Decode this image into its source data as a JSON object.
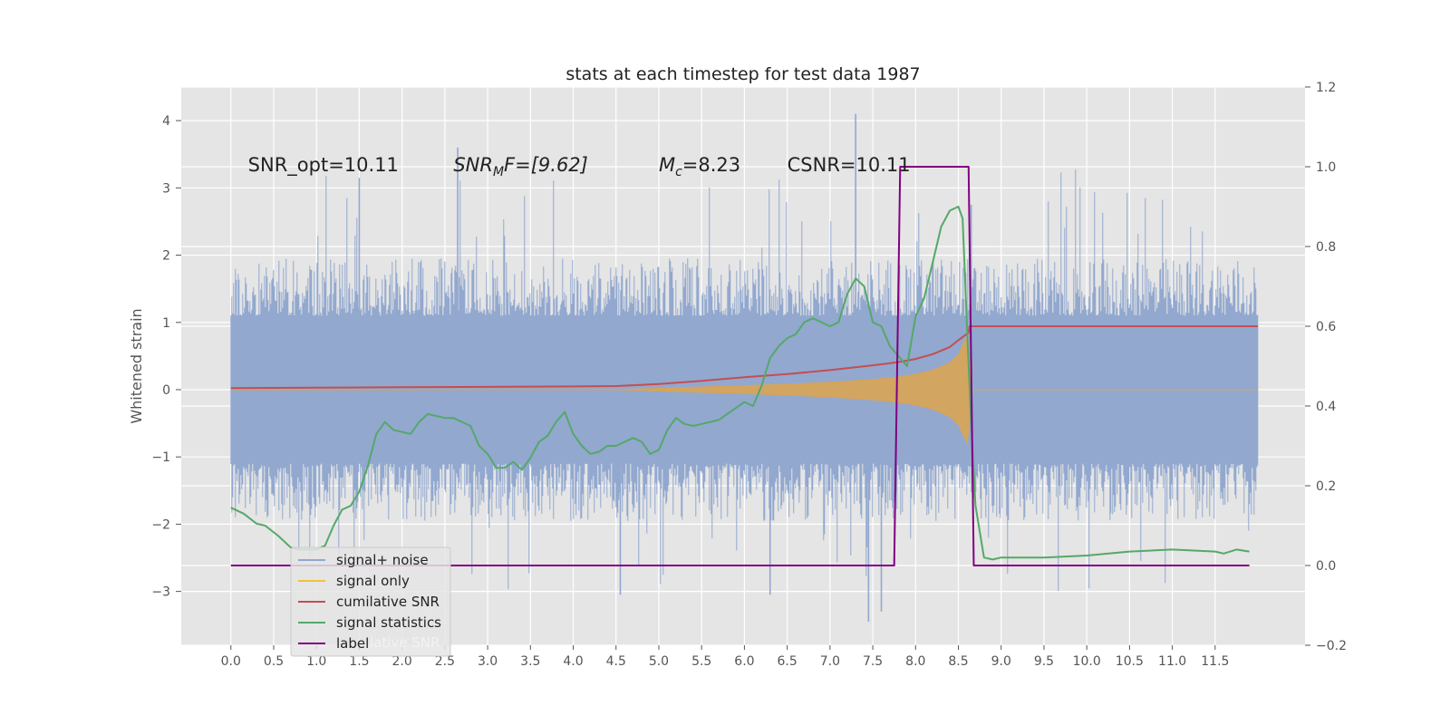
{
  "chart_data": {
    "type": "line",
    "title": "stats at each timestep for test data 1987",
    "ylabel": "Whitened strain",
    "y2label": "",
    "xlim": [
      -0.58,
      12.55
    ],
    "ylim": [
      -3.8,
      4.5
    ],
    "y2lim": [
      -0.2,
      1.2
    ],
    "grid": true,
    "legend_position": "lower-left",
    "x_ticks": [
      0.0,
      0.5,
      1.0,
      1.5,
      2.0,
      2.5,
      3.0,
      3.5,
      4.0,
      4.5,
      5.0,
      5.5,
      6.0,
      6.5,
      7.0,
      7.5,
      8.0,
      8.5,
      9.0,
      9.5,
      10.0,
      10.5,
      11.0,
      11.5
    ],
    "x_tick_labels": [
      "0.0",
      "0.5",
      "1.0",
      "1.5",
      "2.0",
      "2.5",
      "3.0",
      "3.5",
      "4.0",
      "4.5",
      "5.0",
      "5.5",
      "6.0",
      "6.5",
      "7.0",
      "7.5",
      "8.0",
      "8.5",
      "9.0",
      "9.5",
      "10.0",
      "10.5",
      "11.0",
      "11.5"
    ],
    "y_ticks": [
      4,
      3,
      2,
      1,
      0,
      -1,
      -2,
      -3
    ],
    "y_tick_labels": [
      "4",
      "3",
      "2",
      "1",
      "0",
      "−1",
      "−2",
      "−3"
    ],
    "y2_ticks": [
      1.2,
      1.0,
      0.8,
      0.6,
      0.4,
      0.2,
      0.0,
      -0.2
    ],
    "y2_tick_labels": [
      "1.2",
      "1.0",
      "0.8",
      "0.6",
      "0.4",
      "0.2",
      "0.0",
      "−0.2"
    ],
    "annotations": [
      {
        "id": "snr_opt",
        "text": "SNR_opt=10.11",
        "x": 0.2,
        "y": 3.25
      },
      {
        "id": "snr_mf",
        "main": "SNR",
        "sub": "M",
        "rest": "F=[9.62]",
        "x": 2.6,
        "y": 3.25
      },
      {
        "id": "mc",
        "main": "M",
        "sub": "c",
        "rest": "=8.23",
        "x": 5.0,
        "y": 3.25
      },
      {
        "id": "csnr",
        "text": "CSNR=10.11",
        "x": 6.5,
        "y": 3.25
      }
    ],
    "legend": [
      {
        "label": "signal+ noise",
        "color": "#92a8cf"
      },
      {
        "label": "signal only",
        "color": "#f2c13a"
      },
      {
        "label": "cumilative SNR",
        "color": "#c44e52"
      },
      {
        "label": "signal statistics",
        "color": "#55a868"
      },
      {
        "label": "label",
        "color": "#800080"
      }
    ],
    "legend_ghost_text": "lative SNR",
    "series": [
      {
        "name": "signal+ noise",
        "axis": "left",
        "style": "noise",
        "color": "#92a8cf",
        "x_start": 0.0,
        "x_end": 12.0,
        "envelope_max": 2.0,
        "envelope_min": -2.0,
        "peak_max": 4.1,
        "peak_min": -3.45
      },
      {
        "name": "signal only",
        "axis": "left",
        "style": "chirp",
        "color": "#d6a45a",
        "x": [
          0.0,
          4.5,
          5.0,
          5.5,
          6.0,
          6.5,
          7.0,
          7.5,
          7.8,
          8.0,
          8.2,
          8.4,
          8.5,
          8.6,
          8.62,
          8.64,
          8.65,
          12.0
        ],
        "amp": [
          0.0,
          0.0,
          0.02,
          0.04,
          0.06,
          0.08,
          0.11,
          0.15,
          0.19,
          0.23,
          0.29,
          0.4,
          0.52,
          0.8,
          0.6,
          0.25,
          0.0,
          0.0
        ]
      },
      {
        "name": "cumilative SNR",
        "axis": "right",
        "style": "line",
        "color": "#c44e52",
        "x": [
          0.0,
          1.0,
          2.0,
          3.0,
          4.0,
          4.5,
          5.0,
          5.5,
          6.0,
          6.5,
          7.0,
          7.5,
          7.8,
          8.0,
          8.2,
          8.4,
          8.5,
          8.62,
          8.63,
          12.0
        ],
        "y": [
          0.445,
          0.446,
          0.447,
          0.448,
          0.449,
          0.45,
          0.455,
          0.463,
          0.472,
          0.48,
          0.49,
          0.502,
          0.51,
          0.518,
          0.53,
          0.548,
          0.565,
          0.584,
          0.6,
          0.6
        ]
      },
      {
        "name": "signal statistics",
        "axis": "right",
        "style": "line",
        "color": "#55a868",
        "x": [
          0.0,
          0.15,
          0.3,
          0.4,
          0.55,
          0.7,
          0.8,
          0.9,
          1.0,
          1.1,
          1.2,
          1.3,
          1.4,
          1.5,
          1.6,
          1.7,
          1.8,
          1.9,
          2.0,
          2.1,
          2.2,
          2.3,
          2.4,
          2.5,
          2.6,
          2.7,
          2.8,
          2.9,
          3.0,
          3.1,
          3.2,
          3.3,
          3.4,
          3.5,
          3.6,
          3.7,
          3.8,
          3.9,
          4.0,
          4.1,
          4.2,
          4.3,
          4.4,
          4.5,
          4.6,
          4.7,
          4.8,
          4.9,
          5.0,
          5.1,
          5.2,
          5.3,
          5.4,
          5.5,
          5.6,
          5.7,
          5.8,
          5.9,
          6.0,
          6.1,
          6.2,
          6.3,
          6.4,
          6.5,
          6.6,
          6.7,
          6.8,
          6.9,
          7.0,
          7.1,
          7.2,
          7.3,
          7.4,
          7.5,
          7.6,
          7.7,
          7.8,
          7.9,
          8.0,
          8.1,
          8.2,
          8.3,
          8.4,
          8.5,
          8.55,
          8.6,
          8.65,
          8.7,
          8.8,
          8.9,
          9.0,
          9.5,
          10.0,
          10.5,
          11.0,
          11.5,
          11.6,
          11.75,
          11.9
        ],
        "y": [
          0.145,
          0.13,
          0.105,
          0.1,
          0.075,
          0.045,
          0.04,
          0.04,
          0.04,
          0.05,
          0.1,
          0.14,
          0.15,
          0.185,
          0.25,
          0.33,
          0.36,
          0.34,
          0.335,
          0.33,
          0.36,
          0.38,
          0.375,
          0.37,
          0.37,
          0.36,
          0.35,
          0.3,
          0.28,
          0.245,
          0.245,
          0.26,
          0.24,
          0.27,
          0.31,
          0.325,
          0.36,
          0.385,
          0.33,
          0.3,
          0.28,
          0.285,
          0.3,
          0.3,
          0.31,
          0.32,
          0.31,
          0.28,
          0.29,
          0.34,
          0.37,
          0.355,
          0.35,
          0.355,
          0.36,
          0.365,
          0.38,
          0.395,
          0.41,
          0.4,
          0.45,
          0.52,
          0.55,
          0.57,
          0.58,
          0.61,
          0.62,
          0.61,
          0.6,
          0.61,
          0.68,
          0.72,
          0.7,
          0.61,
          0.6,
          0.55,
          0.525,
          0.5,
          0.625,
          0.67,
          0.76,
          0.85,
          0.89,
          0.9,
          0.87,
          0.6,
          0.35,
          0.15,
          0.02,
          0.015,
          0.02,
          0.02,
          0.025,
          0.035,
          0.04,
          0.035,
          0.03,
          0.04,
          0.035
        ]
      },
      {
        "name": "label",
        "axis": "right",
        "style": "line",
        "color": "#800080",
        "x": [
          0.0,
          7.75,
          7.82,
          8.62,
          8.68,
          11.9
        ],
        "y": [
          0.0,
          0.0,
          1.0,
          1.0,
          0.0,
          0.0
        ]
      }
    ]
  }
}
